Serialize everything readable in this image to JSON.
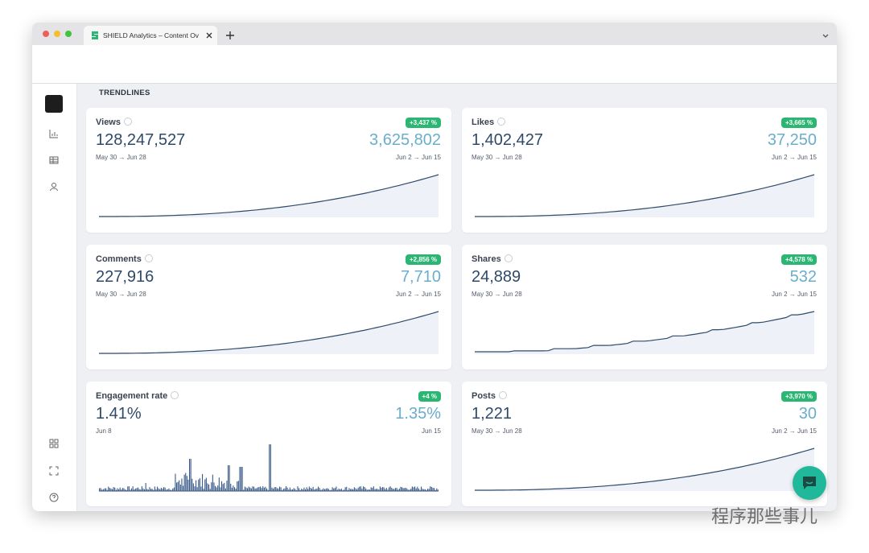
{
  "browser": {
    "tab_title": "SHIELD Analytics – Content Ov"
  },
  "section_title": "TRENDLINES",
  "cards": [
    {
      "label": "Views",
      "total": "128,247,527",
      "change": "+3,437 %",
      "recent": "3,625,802",
      "total_range": "May 30 → Jun 28",
      "recent_range": "Jun 2 → Jun 15"
    },
    {
      "label": "Likes",
      "total": "1,402,427",
      "change": "+3,665 %",
      "recent": "37,250",
      "total_range": "May 30 → Jun 28",
      "recent_range": "Jun 2 → Jun 15"
    },
    {
      "label": "Comments",
      "total": "227,916",
      "change": "+2,856 %",
      "recent": "7,710",
      "total_range": "May 30 → Jun 28",
      "recent_range": "Jun 2 → Jun 15"
    },
    {
      "label": "Shares",
      "total": "24,889",
      "change": "+4,578 %",
      "recent": "532",
      "total_range": "May 30 → Jun 28",
      "recent_range": "Jun 2 → Jun 15"
    },
    {
      "label": "Engagement rate",
      "total": "1.41%",
      "change": "+4 %",
      "recent": "1.35%",
      "total_range": "Jun 8",
      "recent_range": "Jun 15"
    },
    {
      "label": "Posts",
      "total": "1,221",
      "change": "+3,970 %",
      "recent": "30",
      "total_range": "May 30 → Jun 28",
      "recent_range": "Jun 2 → Jun 15"
    }
  ],
  "watermark": "程序那些事儿"
}
